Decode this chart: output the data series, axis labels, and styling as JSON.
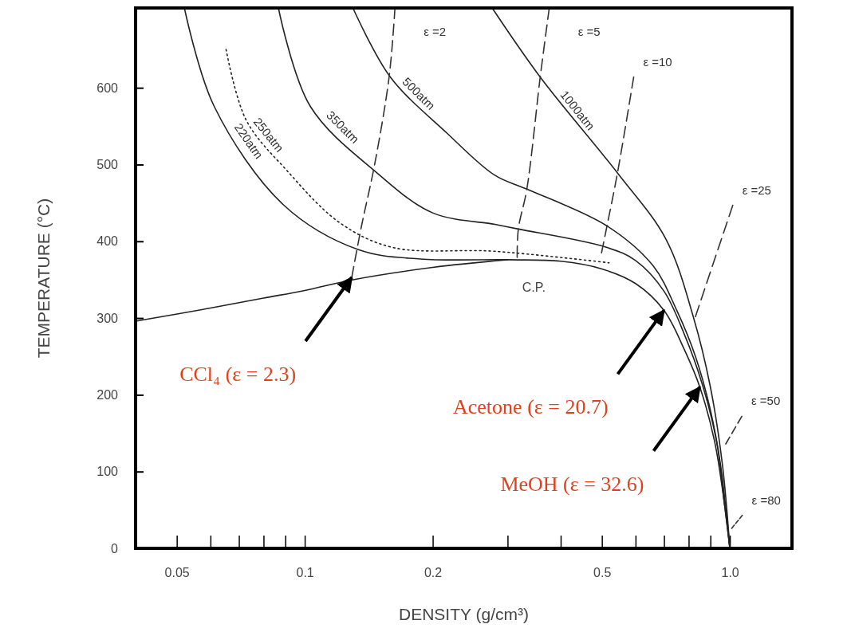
{
  "chart_data": {
    "type": "line",
    "xlabel": "DENSITY (g/cm³)",
    "ylabel": "TEMPERATURE (°C)",
    "log": "x",
    "xlim": [
      0.04,
      1.4
    ],
    "ylim": [
      0,
      704
    ],
    "xticks": [
      0.05,
      {
        "value": 0.06,
        "label": null
      },
      {
        "value": 0.07,
        "label": null
      },
      {
        "value": 0.08,
        "label": null
      },
      {
        "value": 0.09,
        "label": null
      },
      0.1,
      0.2,
      {
        "value": 0.3,
        "label": null
      },
      {
        "value": 0.4,
        "label": null
      },
      0.5,
      {
        "value": 0.6,
        "label": null
      },
      {
        "value": 0.7,
        "label": null
      },
      {
        "value": 0.8,
        "label": null
      },
      {
        "value": 0.9,
        "label": null
      },
      {
        "value": 1,
        "label": "1.0"
      }
    ],
    "yticks": [
      0,
      100,
      200,
      300,
      400,
      500,
      600
    ],
    "grid": false,
    "legend": false,
    "marker": "none",
    "series": [
      {
        "color": "#222222",
        "line_style": "solid",
        "x": [
          0.04,
          0.06,
          0.08,
          0.1,
          0.13,
          0.2,
          0.3
        ],
        "values": [
          296,
          313,
          326,
          336,
          350,
          366,
          376
        ]
      },
      {
        "name": "220atm",
        "color": "#222222",
        "line_style": "solid",
        "x": [
          0.0521,
          0.0612,
          0.0893,
          0.1338,
          0.187,
          0.3,
          0.4,
          0.5,
          0.6,
          0.7,
          0.78,
          0.85,
          0.92,
          0.97,
          1.0
        ],
        "values": [
          704,
          576,
          447,
          389,
          377,
          376,
          374,
          364,
          345,
          310,
          260,
          210,
          140,
          60,
          0
        ]
      },
      {
        "name": "250atm",
        "color": "#222222",
        "line_style": "dotted",
        "x": [
          0.0653,
          0.0728,
          0.0905,
          0.121,
          0.161,
          0.28,
          0.52
        ],
        "values": [
          650,
          558,
          493,
          424,
          392,
          387,
          372
        ]
      },
      {
        "name": "350atm",
        "color": "#222222",
        "line_style": "solid",
        "x": [
          0.0867,
          0.103,
          0.148,
          0.2,
          0.28,
          0.318,
          0.514,
          0.6,
          0.7,
          0.78,
          0.86,
          0.93,
          0.97,
          1.0
        ],
        "values": [
          704,
          576,
          489,
          437,
          422,
          416,
          392,
          375,
          335,
          280,
          215,
          140,
          60,
          0
        ]
      },
      {
        "name": "500atm",
        "color": "#222222",
        "line_style": "solid",
        "x": [
          0.1298,
          0.159,
          0.216,
          0.28,
          0.333,
          0.514,
          0.66,
          0.75,
          0.83,
          0.9,
          0.95,
          1.0
        ],
        "values": [
          704,
          614,
          541,
          486,
          468,
          420,
          368,
          310,
          250,
          180,
          110,
          0
        ]
      },
      {
        "name": "1000atm",
        "color": "#222222",
        "line_style": "solid",
        "x": [
          0.276,
          0.358,
          0.544,
          0.707,
          0.82,
          0.9,
          0.96,
          1.0
        ],
        "values": [
          704,
          614,
          489,
          403,
          302,
          210,
          110,
          0
        ]
      },
      {
        "name": "ε =2",
        "color": "#333333",
        "line_style": "dashed",
        "x": [
          0.163,
          0.158,
          0.146,
          0.136,
          0.129
        ],
        "values": [
          704,
          615,
          500,
          420,
          353
        ]
      },
      {
        "name": "ε =5",
        "color": "#333333",
        "line_style": "dashed",
        "x": [
          0.376,
          0.358,
          0.333,
          0.318,
          0.316
        ],
        "values": [
          704,
          614,
          468,
          416,
          379
        ]
      },
      {
        "name": "ε =10",
        "color": "#333333",
        "line_style": "dashed",
        "x": [
          0.594,
          0.544,
          0.514,
          0.499
        ],
        "values": [
          614,
          489,
          420,
          385
        ]
      },
      {
        "name": "ε =25",
        "color": "#333333",
        "line_style": "dashed",
        "x": [
          1.016,
          0.83
        ],
        "values": [
          447,
          302
        ]
      },
      {
        "name": "ε =50",
        "color": "#333333",
        "line_style": "dashed",
        "x": [
          1.067,
          0.978
        ],
        "values": [
          172,
          136
        ]
      },
      {
        "name": "ε =80",
        "color": "#333333",
        "line_style": "dashed",
        "x": [
          1.07,
          1.01
        ],
        "values": [
          43,
          26
        ]
      }
    ],
    "annotations": [
      {
        "text": "C.P.",
        "x": 0.32,
        "y": 376
      },
      {
        "text": "CCl₄ (ε  = 2.3)",
        "x": 0.129,
        "y": 353
      },
      {
        "text": "Acetone (ε  = 20.7)",
        "x": 0.7,
        "y": 310
      },
      {
        "text": "MeOH (ε  = 32.6)",
        "x": 0.85,
        "y": 210
      }
    ]
  }
}
